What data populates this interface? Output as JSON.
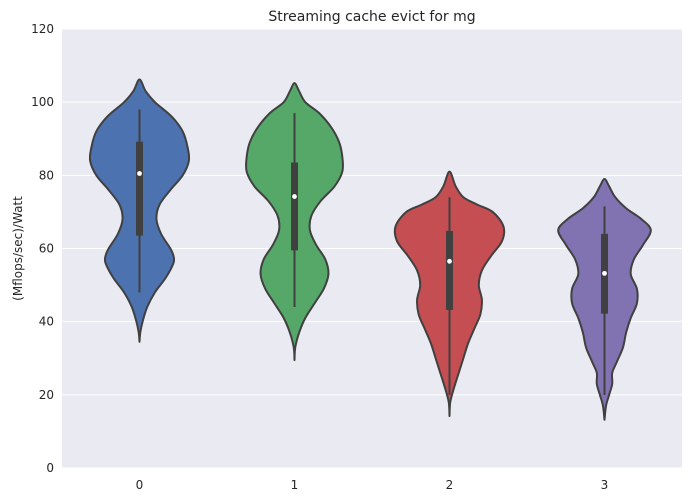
{
  "chart_data": {
    "type": "violin",
    "title": "Streaming cache evict for mg",
    "xlabel": "",
    "ylabel": "(Mflops/sec)/Watt",
    "ylim": [
      0,
      120
    ],
    "yticks": [
      0,
      20,
      40,
      60,
      80,
      100,
      120
    ],
    "grid": true,
    "categories": [
      "0",
      "1",
      "2",
      "3"
    ],
    "violins": [
      {
        "category": "0",
        "color": "#4c72b0",
        "min": 34.5,
        "max": 106.2,
        "q1": 63.5,
        "median": 80.5,
        "q3": 89.2,
        "whisker_low": 48,
        "whisker_high": 98,
        "profile": [
          [
            34.5,
            0
          ],
          [
            37,
            0.5
          ],
          [
            40,
            2
          ],
          [
            44,
            5
          ],
          [
            48,
            10
          ],
          [
            52,
            17
          ],
          [
            56,
            22
          ],
          [
            58,
            22
          ],
          [
            60,
            20
          ],
          [
            64,
            14
          ],
          [
            68,
            11
          ],
          [
            72,
            13
          ],
          [
            76,
            20
          ],
          [
            80,
            28
          ],
          [
            84,
            32
          ],
          [
            88,
            31
          ],
          [
            92,
            28
          ],
          [
            96,
            21
          ],
          [
            100,
            10
          ],
          [
            103,
            4
          ],
          [
            106.2,
            0
          ]
        ]
      },
      {
        "category": "1",
        "color": "#55a868",
        "min": 29.5,
        "max": 105.2,
        "q1": 59.5,
        "median": 74.2,
        "q3": 83.5,
        "whisker_low": 44,
        "whisker_high": 97,
        "profile": [
          [
            29.5,
            0
          ],
          [
            33,
            0.5
          ],
          [
            37,
            3
          ],
          [
            41,
            7
          ],
          [
            45,
            13
          ],
          [
            49,
            19
          ],
          [
            53,
            22
          ],
          [
            57,
            20
          ],
          [
            61,
            14
          ],
          [
            65,
            10
          ],
          [
            69,
            11
          ],
          [
            73,
            17
          ],
          [
            77,
            26
          ],
          [
            81,
            31
          ],
          [
            85,
            31
          ],
          [
            89,
            29
          ],
          [
            93,
            24
          ],
          [
            97,
            16
          ],
          [
            100,
            7
          ],
          [
            103,
            3
          ],
          [
            105.2,
            0
          ]
        ]
      },
      {
        "category": "2",
        "color": "#c44e52",
        "min": 14.2,
        "max": 81,
        "q1": 43.2,
        "median": 56.5,
        "q3": 64.8,
        "whisker_low": 20,
        "whisker_high": 74,
        "profile": [
          [
            14.2,
            0
          ],
          [
            18,
            0.5
          ],
          [
            22,
            3
          ],
          [
            26,
            6
          ],
          [
            30,
            9
          ],
          [
            34,
            12
          ],
          [
            38,
            16
          ],
          [
            42,
            20
          ],
          [
            46,
            21
          ],
          [
            50,
            19
          ],
          [
            54,
            21
          ],
          [
            58,
            27
          ],
          [
            62,
            34
          ],
          [
            66,
            35
          ],
          [
            70,
            28
          ],
          [
            72,
            18
          ],
          [
            74,
            9
          ],
          [
            77,
            4
          ],
          [
            81,
            0
          ]
        ]
      },
      {
        "category": "3",
        "color": "#8172b2",
        "min": 13.2,
        "max": 79,
        "q1": 42.2,
        "median": 53.2,
        "q3": 64,
        "whisker_low": 20,
        "whisker_high": 71.5,
        "profile": [
          [
            13.2,
            0
          ],
          [
            17,
            1
          ],
          [
            20,
            3
          ],
          [
            23,
            5
          ],
          [
            26,
            5
          ],
          [
            29,
            8
          ],
          [
            33,
            12
          ],
          [
            37,
            14
          ],
          [
            41,
            17
          ],
          [
            45,
            21
          ],
          [
            49,
            21
          ],
          [
            53,
            17
          ],
          [
            57,
            19
          ],
          [
            61,
            25
          ],
          [
            65,
            30
          ],
          [
            68,
            24
          ],
          [
            71,
            14
          ],
          [
            74,
            7
          ],
          [
            77,
            3
          ],
          [
            79,
            0
          ]
        ]
      }
    ]
  }
}
